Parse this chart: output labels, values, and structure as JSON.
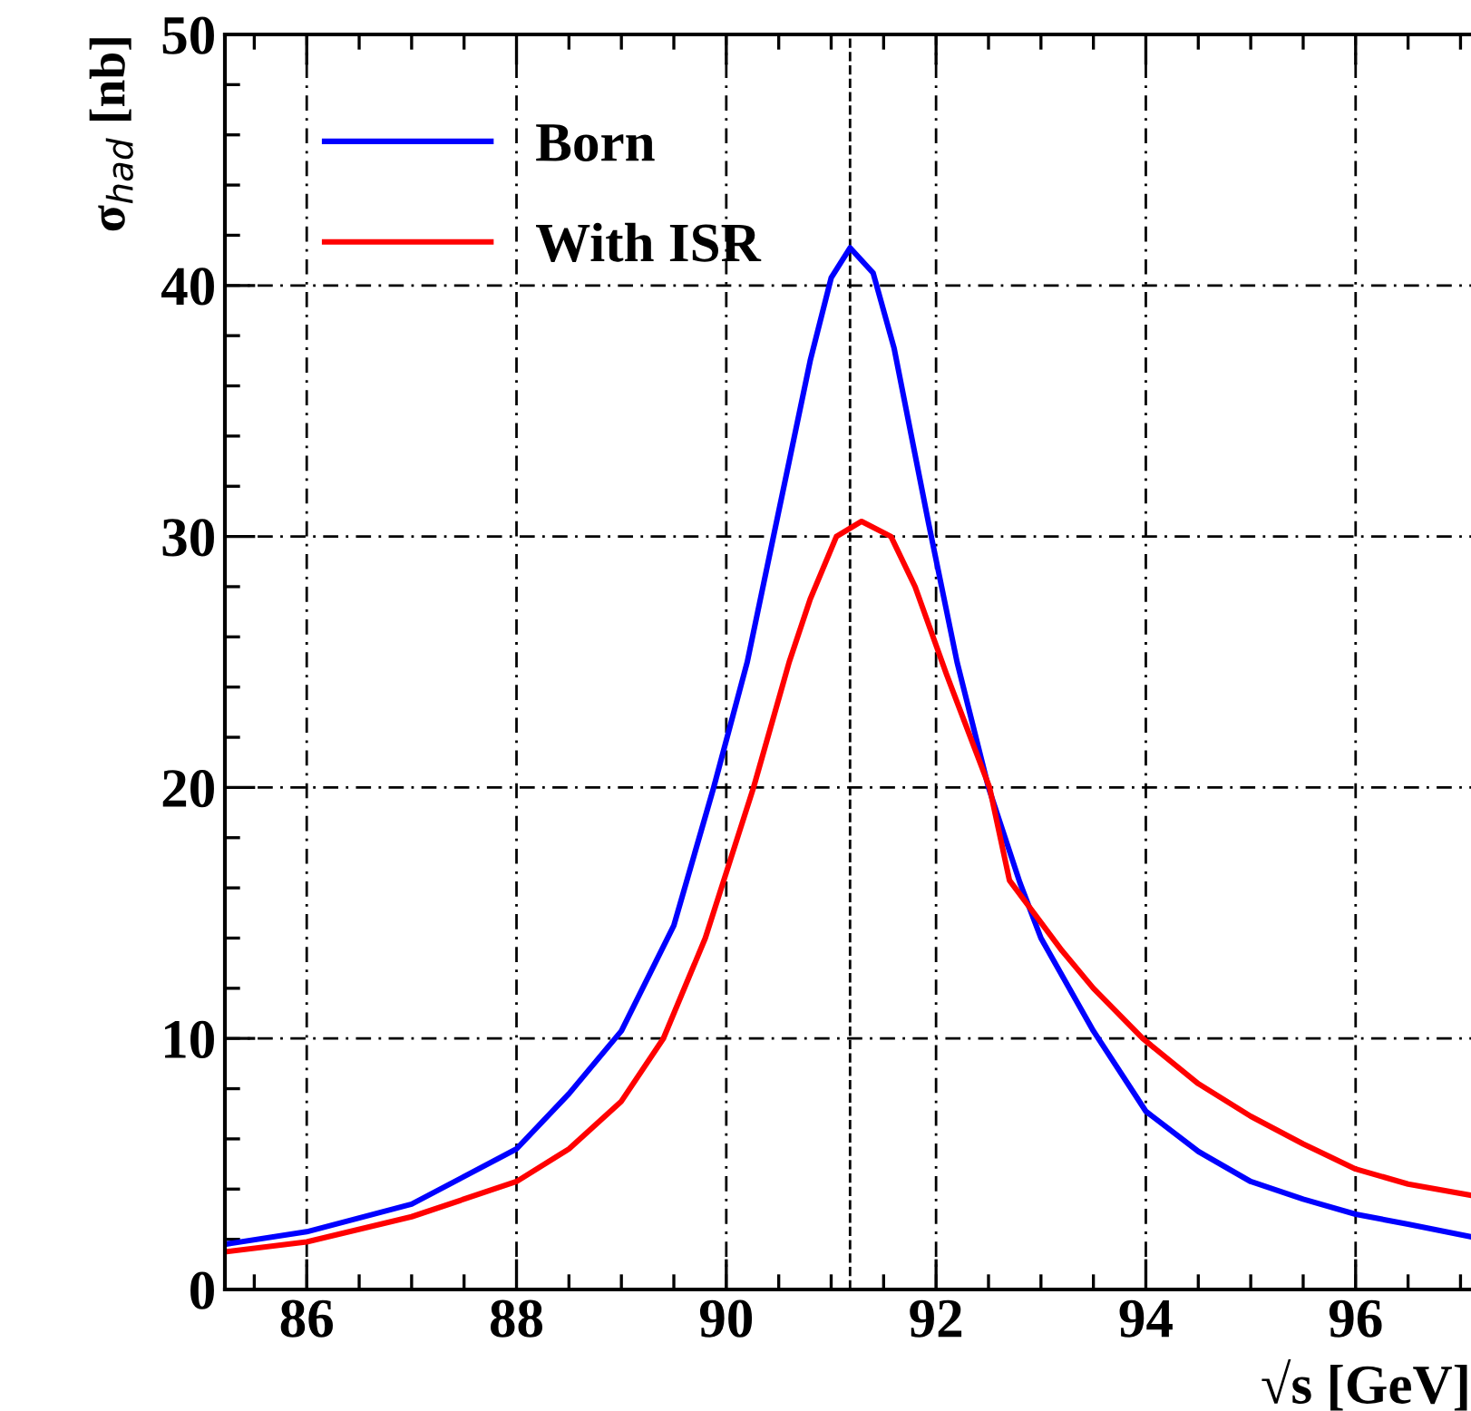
{
  "chart_data": {
    "type": "line",
    "xlabel": "√s [GeV]",
    "ylabel": "σ$_{had}$ [nb]",
    "xlim": [
      85.22,
      97.1
    ],
    "ylim": [
      0,
      50
    ],
    "xticks": [
      86,
      88,
      90,
      92,
      94,
      96
    ],
    "yticks": [
      0,
      10,
      20,
      30,
      40,
      50
    ],
    "grid": true,
    "legend": "top left",
    "line_style": "solid",
    "marker": "none",
    "ref_lines": [
      {
        "axis": "x",
        "value": 91.18,
        "color": "#000000",
        "line_style": "dashed"
      }
    ],
    "series": [
      {
        "name": "Born",
        "color": "#0000ff",
        "x": [
          85.22,
          86,
          87,
          88,
          88.5,
          89,
          89.5,
          89.88,
          90.2,
          90.5,
          90.8,
          91.0,
          91.18,
          91.4,
          91.6,
          91.93,
          92.2,
          92.5,
          92.8,
          93.0,
          93.5,
          94,
          94.5,
          95,
          95.5,
          96,
          96.5,
          97.1
        ],
        "values": [
          1.8,
          2.3,
          3.4,
          5.6,
          7.8,
          10.3,
          14.5,
          20,
          25,
          31,
          37,
          40.3,
          41.5,
          40.5,
          37.5,
          30.5,
          25,
          20,
          16.2,
          14,
          10.3,
          7.1,
          5.5,
          4.3,
          3.6,
          3.0,
          2.6,
          2.1
        ]
      },
      {
        "name": "With ISR",
        "color": "#ff0000",
        "x": [
          85.22,
          86,
          87,
          88,
          88.5,
          89,
          89.4,
          89.8,
          90.26,
          90.6,
          90.8,
          91.05,
          91.29,
          91.57,
          91.8,
          92.1,
          92.51,
          92.7,
          93.2,
          93.5,
          93.97,
          94.5,
          95,
          95.5,
          96,
          96.5,
          97.1
        ],
        "values": [
          1.5,
          1.9,
          2.9,
          4.3,
          5.6,
          7.5,
          10,
          14,
          20,
          25,
          27.5,
          30,
          30.6,
          30,
          28,
          24.5,
          20,
          16.3,
          13.5,
          12,
          10,
          8.2,
          6.9,
          5.8,
          4.8,
          4.2,
          3.75
        ]
      }
    ]
  }
}
